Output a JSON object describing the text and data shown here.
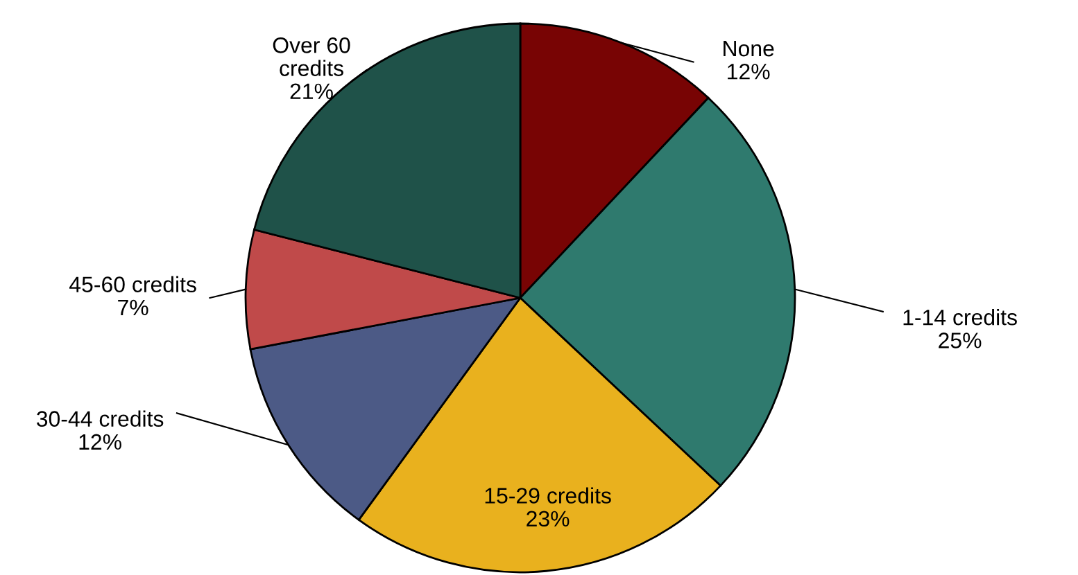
{
  "chart_data": {
    "type": "pie",
    "categories": [
      "None",
      "1-14 credits",
      "15-29 credits",
      "30-44 credits",
      "45-60 credits",
      "Over 60 credits"
    ],
    "values": [
      12,
      25,
      23,
      12,
      7,
      21
    ],
    "value_labels": [
      "12%",
      "25%",
      "23%",
      "12%",
      "7%",
      "21%"
    ],
    "colors": [
      "#780404",
      "#2f7a6e",
      "#e9b11e",
      "#4c5a86",
      "#c04a4a",
      "#1f5249"
    ]
  }
}
